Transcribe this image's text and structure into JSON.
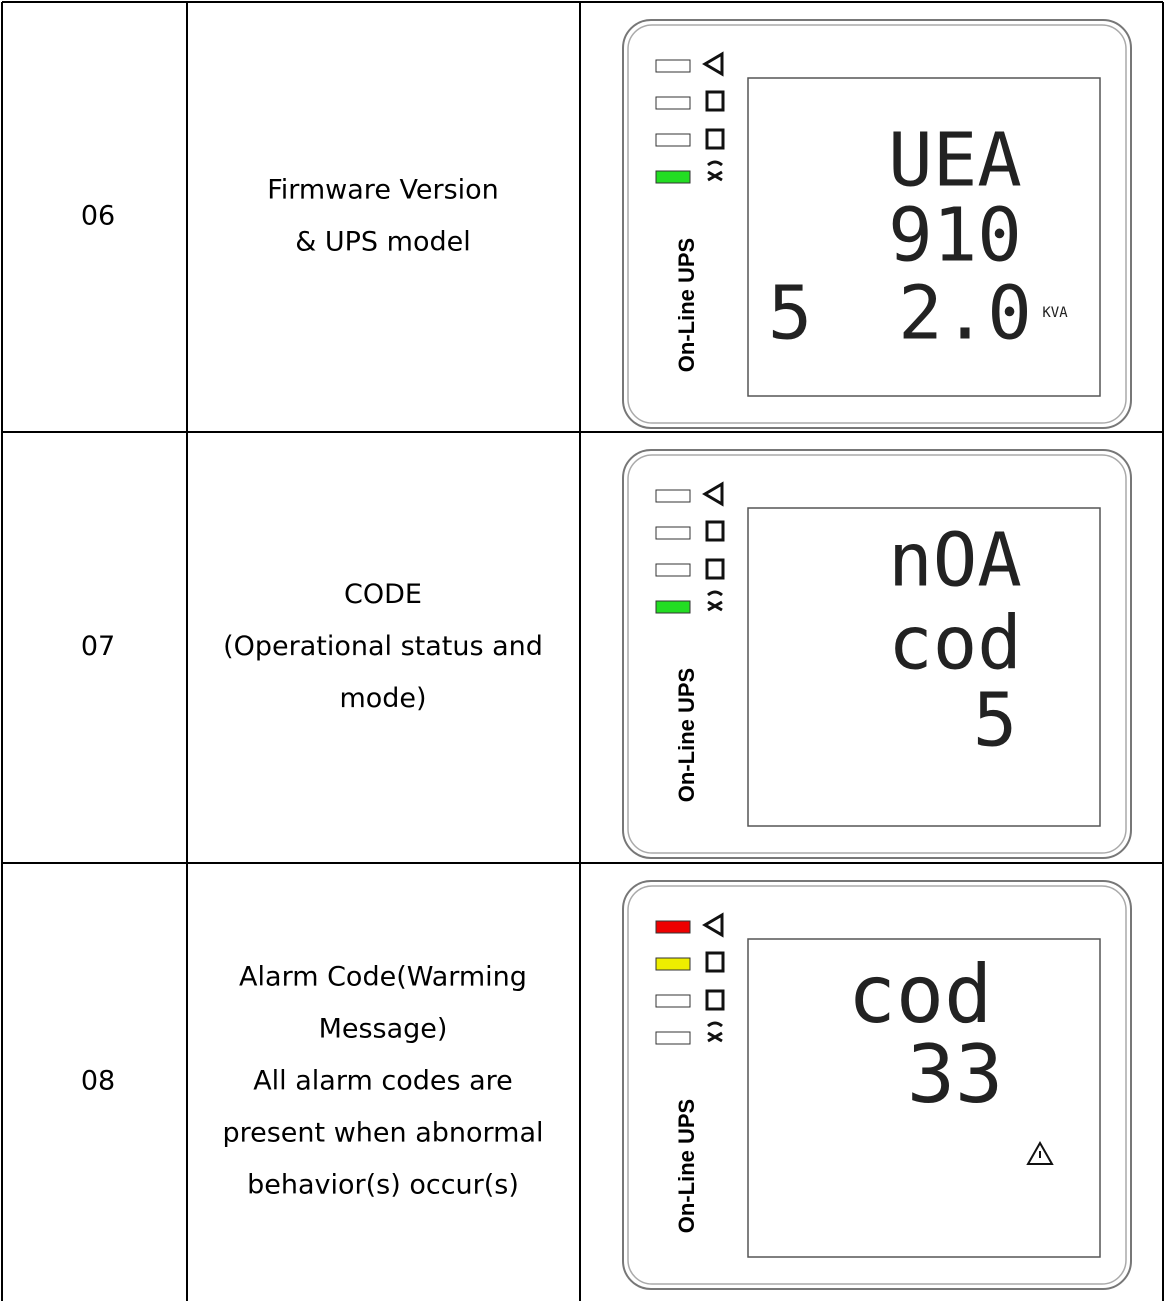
{
  "table": {
    "rows": [
      {
        "number": "06",
        "description": [
          "Firmware Version",
          "& UPS model"
        ],
        "panel": {
          "brand": "On-Line UPS",
          "led_colors": [
            "#ffffff",
            "#ffffff",
            "#ffffff",
            "#22dd22"
          ],
          "display": [
            "UEA",
            "910",
            "5",
            "2.0",
            "KVA"
          ]
        }
      },
      {
        "number": "07",
        "description": [
          "CODE",
          "(Operational status and",
          "mode)"
        ],
        "panel": {
          "brand": "On-Line UPS",
          "led_colors": [
            "#ffffff",
            "#ffffff",
            "#ffffff",
            "#22dd22"
          ],
          "display": [
            "nOA",
            "cod",
            "5"
          ]
        }
      },
      {
        "number": "08",
        "description": [
          "Alarm Code(Warming",
          "Message)",
          "All alarm codes are",
          "present when abnormal",
          "behavior(s) occur(s)"
        ],
        "panel": {
          "brand": "On-Line UPS",
          "led_colors": [
            "#ee0000",
            "#eeee00",
            "#ffffff",
            "#ffffff"
          ],
          "display": [
            "cod",
            "33"
          ]
        }
      }
    ]
  }
}
